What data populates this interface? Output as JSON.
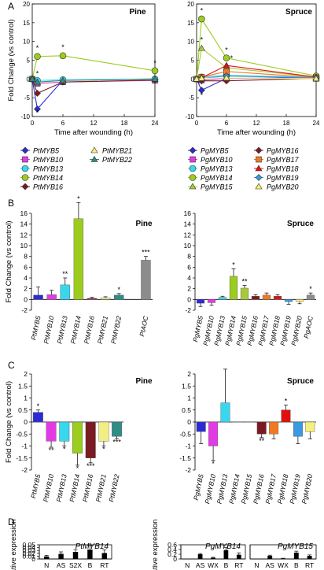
{
  "panel_labels": [
    "A",
    "B",
    "C",
    "D"
  ],
  "colors": {
    "MYB5": "#2b2bd6",
    "MYB10": "#e23be3",
    "MYB13": "#37d7ee",
    "MYB14": "#9ccc1e",
    "MYB15": "#a9c93a",
    "MYB16": "#7a1a22",
    "MYB17": "#f07a22",
    "MYB18": "#e01010",
    "MYB19": "#3a99e0",
    "MYB20": "#f5f07a",
    "MYB21": "#f3ee84",
    "MYB22": "#2f8c86",
    "AOC": "#8c8c8c",
    "barD": "#000000"
  },
  "chart_data": [
    {
      "panel": "A",
      "type": "line",
      "title": "Pine",
      "xlabel": "Time after wounding (h)",
      "ylabel": "Fold Change (vs control)",
      "x": [
        0,
        1,
        6,
        24
      ],
      "xticks": [
        "0",
        "6",
        "12",
        "18",
        "24"
      ],
      "ylim": [
        -10,
        20
      ],
      "yticks": [
        "-10",
        "-5",
        "0",
        "5",
        "10",
        "15",
        "20"
      ],
      "series": [
        {
          "name": "PtMYB5",
          "key": "MYB5",
          "marker": "diamond",
          "values": [
            0,
            -8,
            -0.3,
            0
          ]
        },
        {
          "name": "PtMYB10",
          "key": "MYB10",
          "marker": "square",
          "values": [
            0,
            -1.2,
            -0.8,
            -0.4
          ]
        },
        {
          "name": "PtMYB13",
          "key": "MYB13",
          "marker": "circle",
          "values": [
            0,
            -0.4,
            -0.2,
            0
          ]
        },
        {
          "name": "PtMYB14",
          "key": "MYB14",
          "marker": "circle",
          "values": [
            0,
            6,
            6.2,
            2.2
          ]
        },
        {
          "name": "PtMYB16",
          "key": "MYB16",
          "marker": "diamond",
          "values": [
            0,
            -3.8,
            -0.8,
            -0.3
          ]
        },
        {
          "name": "PtMYB21",
          "key": "MYB21",
          "marker": "triangle",
          "values": [
            0,
            -1,
            -0.4,
            0
          ]
        },
        {
          "name": "PtMYB22",
          "key": "MYB22",
          "marker": "triangle",
          "values": [
            0,
            -0.8,
            -0.4,
            0
          ]
        }
      ],
      "stars": [
        "*",
        "*",
        "*",
        "*",
        "*"
      ]
    },
    {
      "panel": "A",
      "type": "line",
      "title": "Spruce",
      "xlabel": "Time after wounding (h)",
      "ylabel": "",
      "x": [
        0,
        1,
        6,
        24
      ],
      "xticks": [
        "0",
        "6",
        "12",
        "18",
        "24"
      ],
      "ylim": [
        -10,
        20
      ],
      "yticks": [
        "-10",
        "-5",
        "0",
        "5",
        "10",
        "15",
        "20"
      ],
      "series": [
        {
          "name": "PgMYB5",
          "key": "MYB5",
          "marker": "diamond",
          "values": [
            0,
            -3,
            0.2,
            0.3
          ]
        },
        {
          "name": "PgMYB10",
          "key": "MYB10",
          "marker": "square",
          "values": [
            0,
            -0.3,
            0.2,
            0.1
          ]
        },
        {
          "name": "PgMYB13",
          "key": "MYB13",
          "marker": "circle",
          "values": [
            0,
            0.5,
            1,
            0.4
          ]
        },
        {
          "name": "PgMYB14",
          "key": "MYB14",
          "marker": "circle",
          "values": [
            0,
            16,
            5.6,
            0.8
          ]
        },
        {
          "name": "PgMYB15",
          "key": "MYB15",
          "marker": "triangle",
          "values": [
            0,
            8.2,
            3,
            0.5
          ]
        },
        {
          "name": "PgMYB16",
          "key": "MYB16",
          "marker": "diamond",
          "values": [
            0,
            -0.5,
            -0.5,
            0.2
          ]
        },
        {
          "name": "PgMYB17",
          "key": "MYB17",
          "marker": "square",
          "values": [
            0,
            0.5,
            2,
            0.4
          ]
        },
        {
          "name": "PgMYB18",
          "key": "MYB18",
          "marker": "triangle",
          "values": [
            0,
            0.3,
            3.6,
            0.5
          ]
        },
        {
          "name": "PgMYB19",
          "key": "MYB19",
          "marker": "diamond",
          "values": [
            0,
            0.2,
            0.8,
            0.3
          ]
        },
        {
          "name": "PgMYB20",
          "key": "MYB20",
          "marker": "triangle",
          "values": [
            0,
            0.2,
            0.3,
            0.1
          ]
        }
      ],
      "stars": [
        "*",
        "*",
        "*",
        "*",
        "*"
      ]
    },
    {
      "panel": "B",
      "type": "bar",
      "title": "Pine",
      "ylabel": "Fold Change (vs control)",
      "ylim": [
        -2,
        16
      ],
      "yticks": [
        "-2",
        "0",
        "2",
        "4",
        "6",
        "8",
        "10",
        "12",
        "14",
        "16"
      ],
      "categories": [
        "PtMYB5",
        "PtMYB10",
        "PtMYB13",
        "PtMYB14",
        "PtMYB16",
        "PtMYB21",
        "PtMYB22",
        "PtAOC"
      ],
      "keys": [
        "MYB5",
        "MYB10",
        "MYB13",
        "MYB14",
        "MYB16",
        "MYB21",
        "MYB22",
        "AOC"
      ],
      "values": [
        0.8,
        0.9,
        2.7,
        15.0,
        0.2,
        0.3,
        0.8,
        7.3
      ],
      "errors": [
        1.5,
        0.8,
        1.3,
        3.0,
        0.2,
        0.2,
        0.3,
        0.7
      ],
      "sig": [
        "",
        "",
        "**",
        "*",
        "",
        "",
        "*",
        "***"
      ]
    },
    {
      "panel": "B",
      "type": "bar",
      "title": "Spruce",
      "ylim": [
        -2,
        16
      ],
      "yticks": [
        "-2",
        "0",
        "2",
        "4",
        "6",
        "8",
        "10",
        "12",
        "14",
        "16"
      ],
      "categories": [
        "PgMYB5",
        "PgMYB10",
        "PgMYB13",
        "PgMYB14",
        "PgMYB15",
        "PgMYB16",
        "PgMYB17",
        "PgMYB18",
        "PgMYB19",
        "PgMYB20",
        "PgAOC"
      ],
      "keys": [
        "MYB5",
        "MYB10",
        "MYB13",
        "MYB14",
        "MYB15",
        "MYB16",
        "MYB17",
        "MYB18",
        "MYB19",
        "MYB20",
        "AOC"
      ],
      "values": [
        -0.7,
        -0.6,
        0.4,
        4.3,
        2.1,
        0.6,
        0.8,
        0.6,
        -0.4,
        -0.4,
        0.8
      ],
      "errors": [
        0.6,
        0.5,
        0.2,
        1.4,
        0.5,
        0.3,
        0.4,
        0.3,
        0.5,
        0.4,
        0.4
      ],
      "sig": [
        "",
        "",
        "",
        "*",
        "**",
        "",
        "",
        "",
        "",
        "",
        "*"
      ]
    },
    {
      "panel": "C",
      "type": "bar",
      "title": "Pine",
      "ylabel": "Fold Change (vs control)",
      "ylim": [
        -2,
        2
      ],
      "yticks": [
        "-2",
        "-1.5",
        "-1",
        "-0.5",
        "0",
        "0.5",
        "1",
        "1.5",
        "2"
      ],
      "categories": [
        "PtMYB5",
        "PtMYB10",
        "PtMYB13",
        "PtMYB14",
        "PtMYB16",
        "PtMYB21",
        "PtMYB22"
      ],
      "keys": [
        "MYB5",
        "MYB10",
        "MYB13",
        "MYB14",
        "MYB16",
        "MYB21",
        "MYB22"
      ],
      "values": [
        0.4,
        -0.8,
        -0.8,
        -1.3,
        -1.5,
        -0.8,
        -0.6
      ],
      "errors": [
        0.1,
        0.25,
        0.2,
        0.5,
        0.2,
        0.2,
        0.1
      ],
      "sig": [
        "*",
        "**",
        "*",
        "*",
        "***",
        "*",
        "***"
      ]
    },
    {
      "panel": "C",
      "type": "bar",
      "title": "Spruce",
      "ylim": [
        -2,
        2
      ],
      "yticks": [
        "-2",
        "-1.5",
        "-1",
        "-0.5",
        "0",
        "0.5",
        "1",
        "1.5",
        "2"
      ],
      "categories": [
        "PgMYB5",
        "PgMYB10",
        "PgMYB13",
        "PgMYB14",
        "PgMYB15",
        "PgMYB16",
        "PgMYB17",
        "PgMYB18",
        "PgMYB19",
        "PgMYB20"
      ],
      "keys": [
        "MYB5",
        "MYB10",
        "MYB13",
        "MYB14",
        "MYB15",
        "MYB16",
        "MYB17",
        "MYB18",
        "MYB19",
        "MYB20"
      ],
      "values": [
        -0.4,
        -1.0,
        0.8,
        0.0,
        0.0,
        -0.5,
        -0.5,
        0.5,
        -0.6,
        -0.4
      ],
      "errors": [
        0.5,
        0.6,
        1.4,
        0.0,
        0.0,
        0.15,
        0.2,
        0.2,
        0.3,
        0.3
      ],
      "sig": [
        "",
        "*",
        "",
        "",
        "",
        "**",
        "",
        "*",
        "",
        ""
      ]
    },
    {
      "panel": "D",
      "type": "bar",
      "title": "PtMYB14",
      "ylabel": "Relative expression",
      "ylim": [
        0,
        0.05
      ],
      "yticks": [
        "0",
        "0.01",
        "0.02",
        "0.03",
        "0.04",
        "0.05"
      ],
      "categories": [
        "N",
        "AS",
        "S2X",
        "B",
        "RT"
      ],
      "values": [
        0.009,
        0.018,
        0.025,
        0.033,
        0.021
      ],
      "errors": [
        0.004,
        0.007,
        0.008,
        0.014,
        0.011
      ]
    },
    {
      "panel": "D",
      "type": "bar",
      "title": "PgMYB14",
      "ylabel": "Relative expression",
      "ylim": [
        0,
        0.6
      ],
      "yticks": [
        "0",
        "0.2",
        "0.4",
        "0.6"
      ],
      "categories": [
        "N",
        "AS",
        "WX",
        "B",
        "RT"
      ],
      "values": [
        0.0,
        0.2,
        0.05,
        0.38,
        0.18
      ],
      "errors": [
        0.0,
        0.03,
        0.02,
        0.1,
        0.08
      ]
    },
    {
      "panel": "D",
      "type": "bar",
      "title": "PgMYB15",
      "ylim": [
        0,
        0.6
      ],
      "yticks": [],
      "categories": [
        "N",
        "AS",
        "WX",
        "B",
        "RT"
      ],
      "values": [
        0.0,
        0.13,
        0.02,
        0.27,
        0.13
      ],
      "errors": [
        0.0,
        0.03,
        0.01,
        0.06,
        0.04
      ]
    }
  ]
}
